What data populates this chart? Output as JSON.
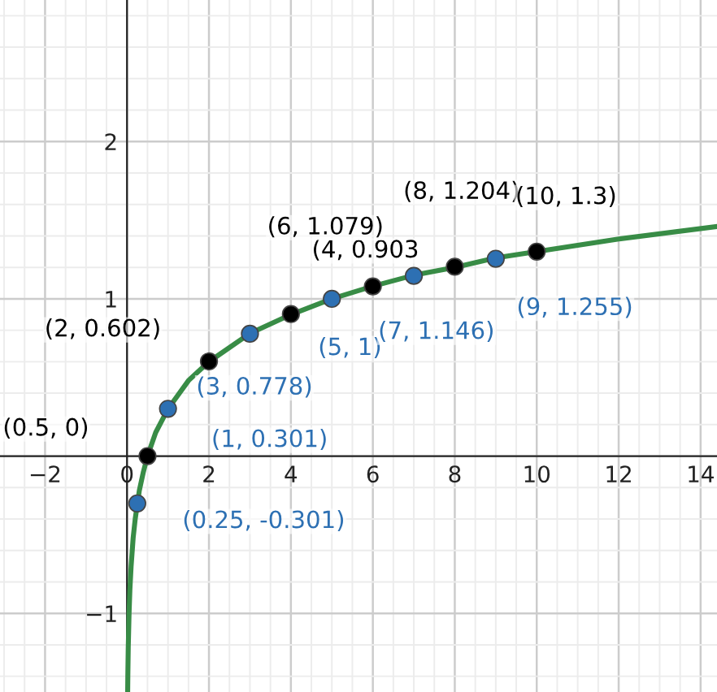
{
  "chart_data": {
    "type": "line",
    "series": [
      {
        "color": "#388c46",
        "marker": "none",
        "x": [
          0.016,
          0.02,
          0.03,
          0.05,
          0.07,
          0.1,
          0.15,
          0.2,
          0.3,
          0.4,
          0.5,
          0.7,
          1,
          1.5,
          2,
          3,
          4,
          5,
          6,
          7,
          8,
          9,
          10,
          12,
          14.4
        ],
        "values": [
          -1.5,
          -1.4,
          -1.22,
          -1.0,
          -0.85,
          -0.7,
          -0.52,
          -0.4,
          -0.22,
          -0.1,
          0,
          0.15,
          0.3,
          0.48,
          0.6,
          0.78,
          0.9,
          1.0,
          1.08,
          1.15,
          1.2,
          1.26,
          1.3,
          1.38,
          1.46
        ]
      },
      {
        "type": "scatter",
        "color": "#000000",
        "marker": "circle",
        "x": [
          0.5,
          2,
          4,
          6,
          8,
          10
        ],
        "values": [
          0,
          0.602,
          0.903,
          1.079,
          1.204,
          1.3
        ]
      },
      {
        "type": "scatter",
        "color": "#2d70b3",
        "marker": "circle",
        "x": [
          0.25,
          1,
          3,
          5,
          7,
          9
        ],
        "values": [
          -0.301,
          0.301,
          0.778,
          1,
          1.146,
          1.255
        ]
      }
    ],
    "annotations": [
      {
        "text": "(0.5, 0)",
        "x": 0.5,
        "y": 0
      },
      {
        "text": "(2, 0.602)",
        "x": 2,
        "y": 0.602
      },
      {
        "text": "(4, 0.903",
        "x": 4,
        "y": 0.903
      },
      {
        "text": "(6, 1.079)",
        "x": 6,
        "y": 1.079
      },
      {
        "text": "(8, 1.204)",
        "x": 8,
        "y": 1.204
      },
      {
        "text": "(10, 1.3)",
        "x": 10,
        "y": 1.3
      },
      {
        "text": "(0.25, -0.301)",
        "x": 0.25,
        "y": -0.301
      },
      {
        "text": "(1, 0.301)",
        "x": 1,
        "y": 0.301
      },
      {
        "text": "(3, 0.778)",
        "x": 3,
        "y": 0.778
      },
      {
        "text": "(5, 1)",
        "x": 5,
        "y": 1
      },
      {
        "text": "(7, 1.146)",
        "x": 7,
        "y": 1.146
      },
      {
        "text": "(9, 1.255)",
        "x": 9,
        "y": 1.255
      }
    ],
    "xlim": [
      -3.1,
      14.4
    ],
    "ylim": [
      -1.5,
      2.9
    ],
    "xticks": [
      -2,
      0,
      2,
      4,
      6,
      8,
      10,
      12,
      14
    ],
    "yticks": [
      -1,
      1,
      2
    ],
    "grid": true
  }
}
